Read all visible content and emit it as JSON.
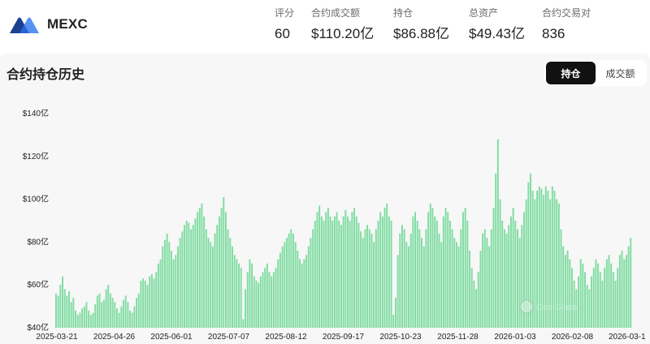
{
  "brand": {
    "name": "MEXC"
  },
  "stats": [
    {
      "label": "评分",
      "value": "60"
    },
    {
      "label": "合约成交额",
      "value": "$110.20亿"
    },
    {
      "label": "持仓",
      "value": "$86.88亿"
    },
    {
      "label": "总资产",
      "value": "$49.43亿"
    },
    {
      "label": "合约交易对",
      "value": "836"
    }
  ],
  "section": {
    "title": "合约持仓历史",
    "toggle": {
      "active": "持仓",
      "inactive": "成交额"
    }
  },
  "colors": {
    "bar": "#7fdca1",
    "bar_stroke": "#5ccb85",
    "panel_bg": "#f7f7f7",
    "logo_dark": "#1c3f8f",
    "logo_light": "#4f8cf0"
  },
  "chart_data": {
    "type": "bar",
    "x_tick_labels": [
      "2025-03-21",
      "2025-04-26",
      "2025-06-01",
      "2025-07-07",
      "2025-08-12",
      "2025-09-17",
      "2025-10-23",
      "2025-11-28",
      "2026-01-03",
      "2026-02-08",
      "2026-03-1"
    ],
    "y_tick_labels": [
      "$40亿",
      "$60亿",
      "$80亿",
      "$100亿",
      "$120亿",
      "$140亿"
    ],
    "y_ticks": [
      40,
      60,
      80,
      100,
      120,
      140
    ],
    "ylim": [
      40,
      140
    ],
    "x_range": [
      "2025-03-21",
      "2026-03-16"
    ],
    "grid": false,
    "values": [
      56,
      55,
      60,
      64,
      58,
      55,
      57,
      52,
      54,
      48,
      46,
      47,
      49,
      50,
      52,
      48,
      46,
      47,
      51,
      55,
      56,
      52,
      53,
      58,
      60,
      56,
      54,
      52,
      49,
      47,
      50,
      53,
      55,
      52,
      48,
      47,
      50,
      54,
      56,
      62,
      63,
      62,
      60,
      64,
      65,
      63,
      66,
      70,
      72,
      78,
      81,
      84,
      80,
      76,
      72,
      74,
      78,
      82,
      85,
      88,
      90,
      89,
      86,
      88,
      91,
      94,
      96,
      98,
      92,
      86,
      82,
      80,
      78,
      84,
      88,
      92,
      96,
      101,
      94,
      86,
      82,
      78,
      74,
      72,
      70,
      68,
      44,
      58,
      66,
      72,
      70,
      64,
      62,
      61,
      64,
      66,
      68,
      70,
      66,
      64,
      66,
      68,
      72,
      75,
      78,
      80,
      82,
      84,
      86,
      84,
      80,
      76,
      72,
      70,
      72,
      74,
      78,
      82,
      86,
      90,
      94,
      97,
      92,
      90,
      94,
      96,
      92,
      90,
      92,
      94,
      90,
      88,
      92,
      95,
      92,
      90,
      94,
      96,
      92,
      89,
      85,
      82,
      86,
      88,
      86,
      84,
      80,
      86,
      90,
      94,
      92,
      96,
      98,
      92,
      90,
      46,
      54,
      74,
      84,
      88,
      86,
      80,
      78,
      84,
      92,
      94,
      90,
      86,
      82,
      78,
      86,
      94,
      98,
      96,
      92,
      90,
      84,
      80,
      92,
      96,
      94,
      90,
      86,
      82,
      80,
      78,
      86,
      94,
      96,
      90,
      76,
      68,
      62,
      58,
      66,
      76,
      84,
      86,
      82,
      78,
      86,
      96,
      112,
      128,
      100,
      90,
      86,
      84,
      88,
      92,
      96,
      90,
      86,
      82,
      88,
      94,
      100,
      108,
      112,
      104,
      100,
      104,
      106,
      105,
      102,
      106,
      104,
      100,
      106,
      104,
      100,
      98,
      86,
      78,
      74,
      76,
      72,
      68,
      62,
      58,
      64,
      72,
      70,
      66,
      60,
      58,
      64,
      68,
      72,
      70,
      66,
      62,
      68,
      72,
      74,
      70,
      66,
      62,
      68,
      74,
      76,
      72,
      74,
      78,
      82
    ],
    "watermark": "CoinGlass"
  }
}
